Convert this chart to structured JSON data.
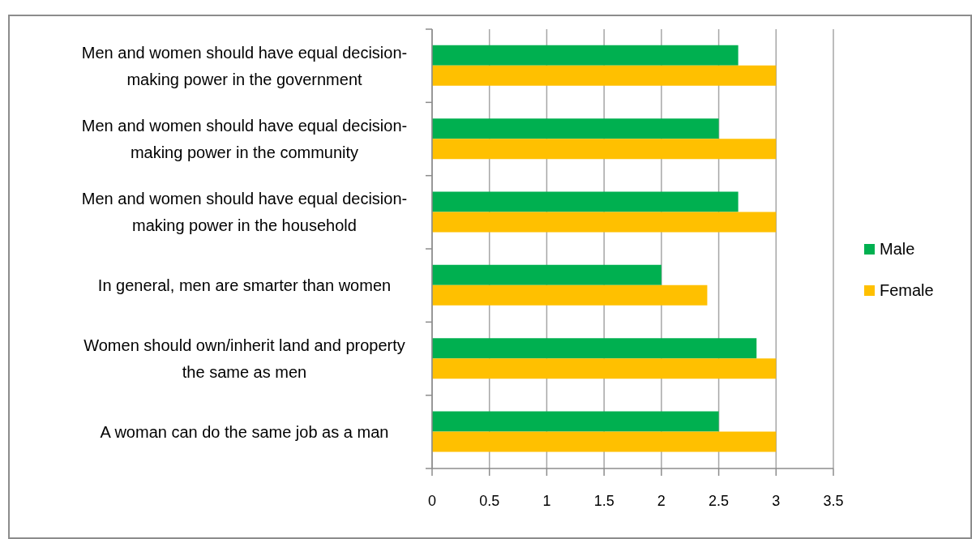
{
  "chart_data": {
    "type": "bar",
    "orientation": "horizontal",
    "categories": [
      "Men and women should have equal decision-making power in the government",
      "Men and women should have equal decision-making power in the community",
      "Men and women should have equal decision-making power in the household",
      "In general, men are smarter than women",
      "Women should own/inherit land and property the same as men",
      "A woman can do the same job as a man"
    ],
    "series": [
      {
        "name": "Male",
        "color": "#00b050",
        "values": [
          2.67,
          2.5,
          2.67,
          2,
          2.83,
          2.5
        ]
      },
      {
        "name": "Female",
        "color": "#ffc000",
        "values": [
          3,
          3,
          3,
          2.4,
          3,
          3
        ]
      }
    ],
    "xlim": [
      0,
      3.5
    ],
    "xticks": [
      0,
      0.5,
      1,
      1.5,
      2,
      2.5,
      3,
      3.5
    ],
    "grid": "x",
    "legend": "right"
  }
}
